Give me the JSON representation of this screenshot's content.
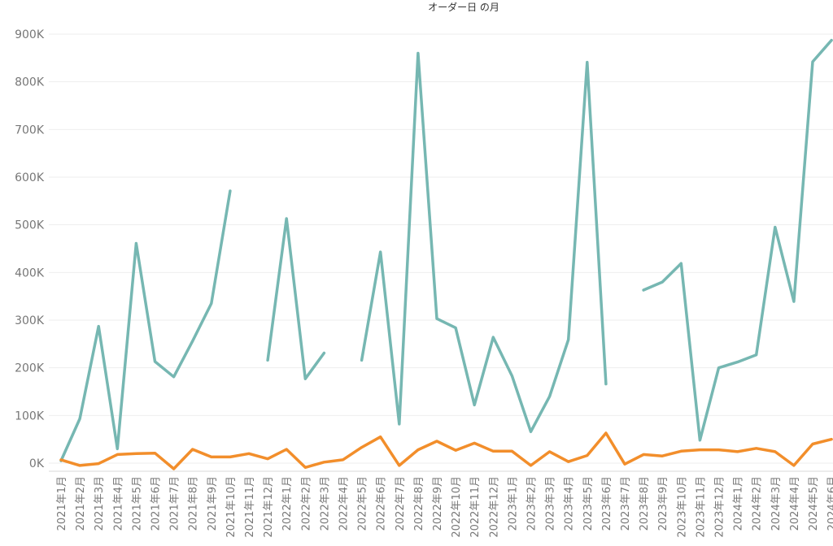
{
  "chart_data": {
    "type": "line",
    "title": "オーダー日 の月",
    "xlabel": "",
    "ylabel": "",
    "categories": [
      "2021年1月",
      "2021年2月",
      "2021年3月",
      "2021年4月",
      "2021年5月",
      "2021年6月",
      "2021年7月",
      "2021年8月",
      "2021年9月",
      "2021年10月",
      "2021年11月",
      "2021年12月",
      "2022年1月",
      "2022年2月",
      "2022年3月",
      "2022年4月",
      "2022年5月",
      "2022年6月",
      "2022年7月",
      "2022年8月",
      "2022年9月",
      "2022年10月",
      "2022年11月",
      "2022年12月",
      "2023年1月",
      "2023年2月",
      "2023年3月",
      "2023年4月",
      "2023年5月",
      "2023年6月",
      "2023年7月",
      "2023年8月",
      "2023年9月",
      "2023年10月",
      "2023年11月",
      "2023年12月",
      "2024年1月",
      "2024年2月",
      "2024年3月",
      "2024年4月",
      "2024年5月",
      "2024年6月"
    ],
    "ylim": [
      0,
      900000
    ],
    "yticks": [
      {
        "value": 0,
        "label": "0K"
      },
      {
        "value": 100000,
        "label": "100K"
      },
      {
        "value": 200000,
        "label": "200K"
      },
      {
        "value": 300000,
        "label": "300K"
      },
      {
        "value": 400000,
        "label": "400K"
      },
      {
        "value": 500000,
        "label": "500K"
      },
      {
        "value": 600000,
        "label": "600K"
      },
      {
        "value": 700000,
        "label": "700K"
      },
      {
        "value": 800000,
        "label": "800K"
      },
      {
        "value": 900000,
        "label": "900K"
      }
    ],
    "grid": true,
    "series": [
      {
        "color": "#76b7b2",
        "values": [
          5000,
          93000,
          287000,
          30000,
          461000,
          213000,
          181000,
          256000,
          335000,
          571000,
          null,
          216000,
          513000,
          177000,
          231000,
          null,
          216000,
          443000,
          82000,
          860000,
          303000,
          284000,
          122000,
          264000,
          183000,
          66000,
          140000,
          259000,
          841000,
          166000,
          null,
          363000,
          380000,
          419000,
          48000,
          200000,
          212000,
          227000,
          495000,
          339000,
          842000,
          887000
        ]
      },
      {
        "color": "#f28e2b",
        "values": [
          7000,
          -5000,
          -1000,
          18000,
          20000,
          21000,
          -12000,
          29000,
          13000,
          13000,
          20000,
          9000,
          29000,
          -9000,
          2000,
          7000,
          33000,
          55000,
          -5000,
          28000,
          46000,
          27000,
          42000,
          25000,
          25000,
          -5000,
          24000,
          3000,
          16000,
          63000,
          -2000,
          18000,
          15000,
          25000,
          28000,
          28000,
          24000,
          31000,
          24000,
          -5000,
          40000,
          50000
        ]
      }
    ]
  }
}
